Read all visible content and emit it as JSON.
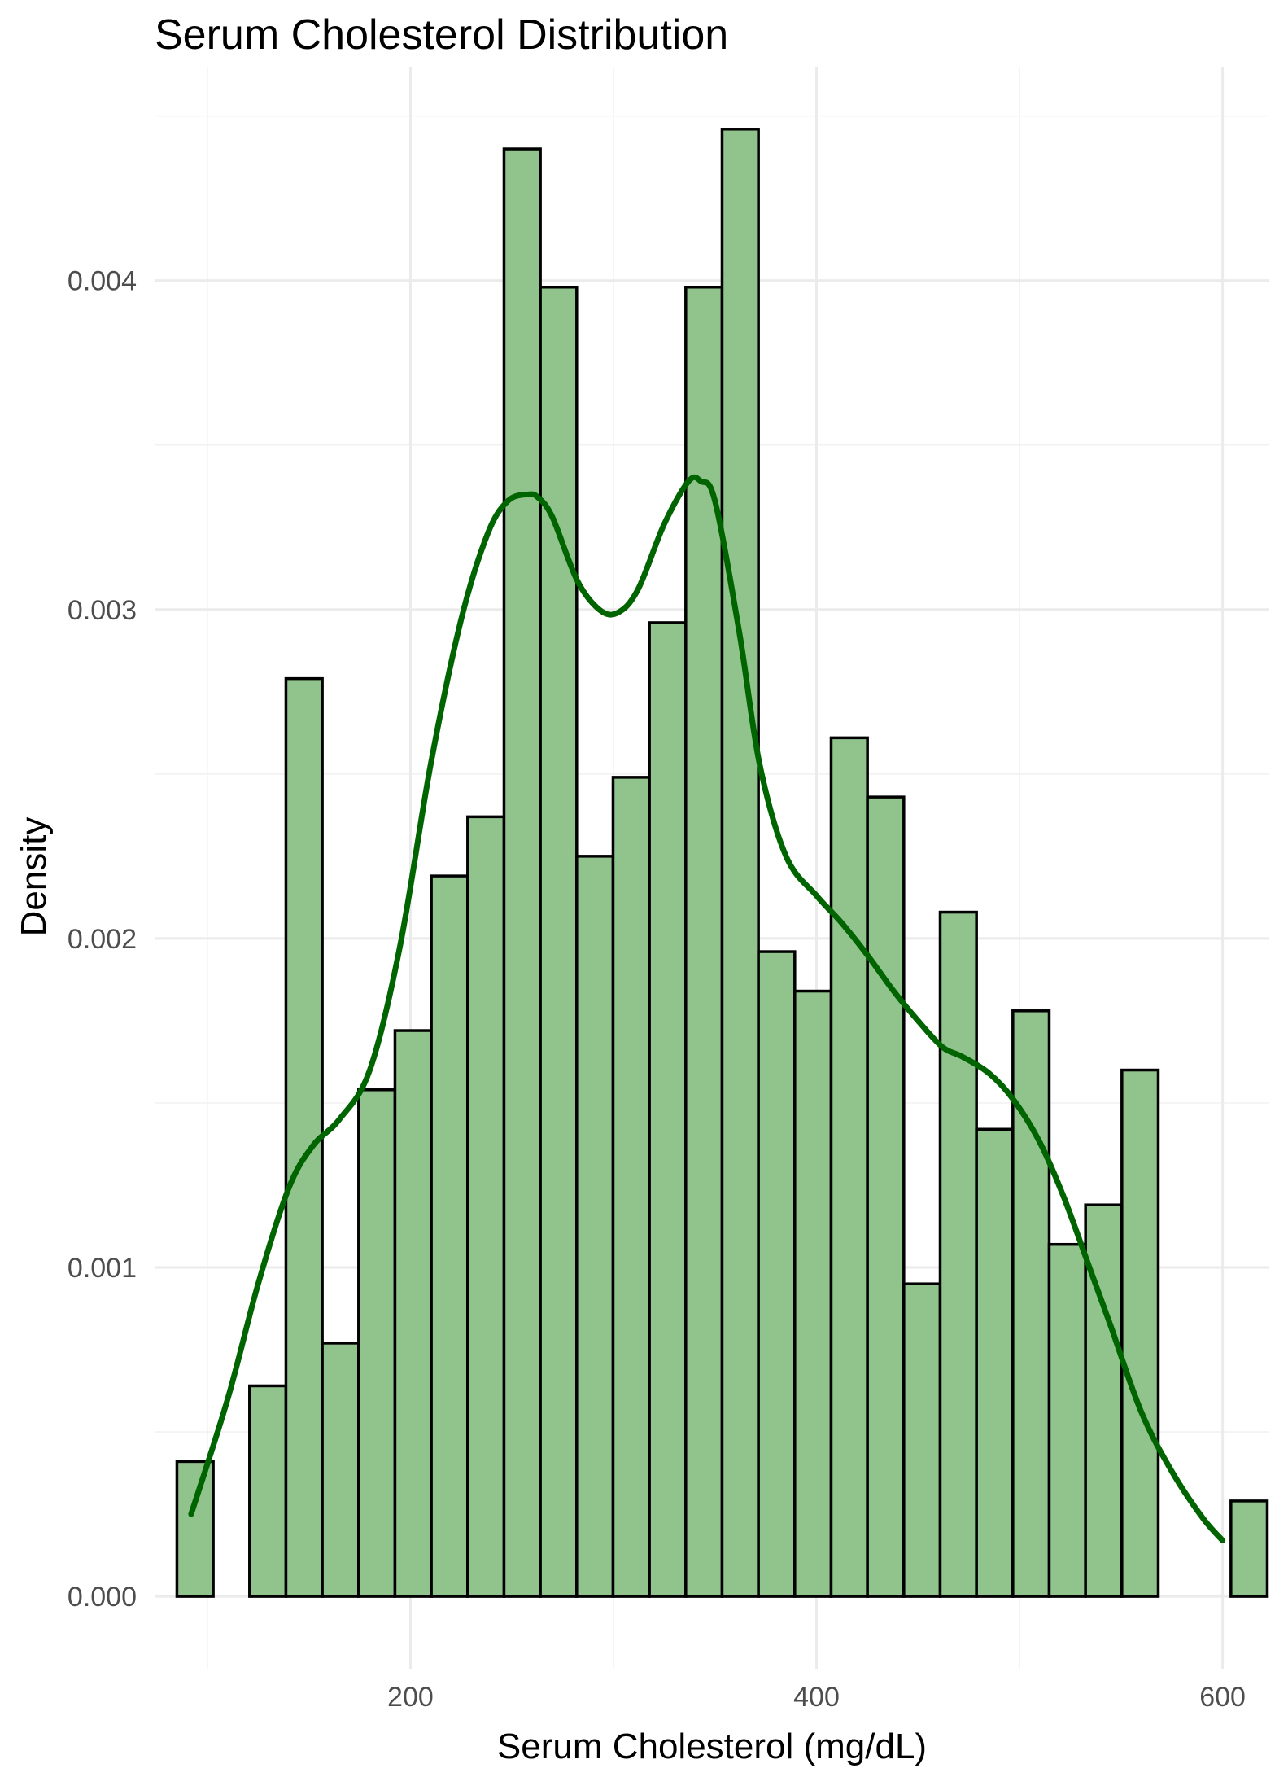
{
  "chart_data": {
    "type": "histogram",
    "title": "Serum Cholesterol Distribution",
    "xlabel": "Serum Cholesterol (mg/dL)",
    "ylabel": "Density",
    "xlim": [
      74,
      623
    ],
    "ylim": [
      -0.00022,
      0.00465
    ],
    "x_ticks": [
      200,
      400,
      600
    ],
    "x_tick_labels": [
      "200",
      "400",
      "600"
    ],
    "y_ticks": [
      0.0,
      0.001,
      0.002,
      0.003,
      0.004
    ],
    "y_tick_labels": [
      "0.000",
      "0.001",
      "0.002",
      "0.003",
      "0.004"
    ],
    "grid": true,
    "bin_width": 17.9,
    "bin_start": 85,
    "bar_fill": "#91c48d",
    "bar_outline": "#000000",
    "density_color": "#006400",
    "bins": [
      {
        "x0": 85.0,
        "x1": 102.9,
        "density": 0.00041
      },
      {
        "x0": 102.9,
        "x1": 120.8,
        "density": 0.0
      },
      {
        "x0": 120.8,
        "x1": 138.7,
        "density": 0.00064
      },
      {
        "x0": 138.7,
        "x1": 156.6,
        "density": 0.00279
      },
      {
        "x0": 156.6,
        "x1": 174.5,
        "density": 0.00077
      },
      {
        "x0": 174.5,
        "x1": 192.4,
        "density": 0.00154
      },
      {
        "x0": 192.4,
        "x1": 210.3,
        "density": 0.00172
      },
      {
        "x0": 210.3,
        "x1": 228.2,
        "density": 0.00219
      },
      {
        "x0": 228.2,
        "x1": 246.1,
        "density": 0.00237
      },
      {
        "x0": 246.1,
        "x1": 264.0,
        "density": 0.0044
      },
      {
        "x0": 264.0,
        "x1": 281.9,
        "density": 0.00398
      },
      {
        "x0": 281.9,
        "x1": 299.8,
        "density": 0.00225
      },
      {
        "x0": 299.8,
        "x1": 317.7,
        "density": 0.00249
      },
      {
        "x0": 317.7,
        "x1": 335.6,
        "density": 0.00296
      },
      {
        "x0": 335.6,
        "x1": 353.5,
        "density": 0.00398
      },
      {
        "x0": 353.5,
        "x1": 371.4,
        "density": 0.00446
      },
      {
        "x0": 371.4,
        "x1": 389.3,
        "density": 0.00196
      },
      {
        "x0": 389.3,
        "x1": 407.2,
        "density": 0.00184
      },
      {
        "x0": 407.2,
        "x1": 425.1,
        "density": 0.00261
      },
      {
        "x0": 425.1,
        "x1": 443.0,
        "density": 0.00243
      },
      {
        "x0": 443.0,
        "x1": 460.9,
        "density": 0.00095
      },
      {
        "x0": 460.9,
        "x1": 478.8,
        "density": 0.00208
      },
      {
        "x0": 478.8,
        "x1": 496.7,
        "density": 0.00142
      },
      {
        "x0": 496.7,
        "x1": 514.6,
        "density": 0.00178
      },
      {
        "x0": 514.6,
        "x1": 532.5,
        "density": 0.00107
      },
      {
        "x0": 532.5,
        "x1": 550.4,
        "density": 0.00119
      },
      {
        "x0": 550.4,
        "x1": 568.3,
        "density": 0.0016
      },
      {
        "x0": 568.3,
        "x1": 586.2,
        "density": 0.0
      },
      {
        "x0": 586.2,
        "x1": 604.1,
        "density": 0.0
      },
      {
        "x0": 604.1,
        "x1": 622.0,
        "density": 0.00029
      }
    ],
    "density_curve": {
      "x": [
        92,
        110,
        125,
        140,
        152,
        165,
        180,
        195,
        210,
        225,
        238,
        248,
        258,
        263,
        270,
        282,
        293,
        302,
        312,
        325,
        337,
        343,
        350,
        362,
        372,
        385,
        400,
        412,
        425,
        438,
        450,
        462,
        472,
        485,
        497,
        510,
        522,
        535,
        545,
        560,
        575,
        590,
        600
      ],
      "y": [
        0.00025,
        0.0006,
        0.00095,
        0.00124,
        0.00137,
        0.00145,
        0.0016,
        0.00198,
        0.00253,
        0.00297,
        0.00323,
        0.00333,
        0.00335,
        0.00334,
        0.00328,
        0.00309,
        0.003,
        0.00299,
        0.00306,
        0.00326,
        0.00339,
        0.00339,
        0.00333,
        0.00293,
        0.00253,
        0.00225,
        0.00213,
        0.00205,
        0.00195,
        0.00184,
        0.00175,
        0.00167,
        0.00164,
        0.00159,
        0.00151,
        0.00138,
        0.00121,
        0.00099,
        0.00082,
        0.00056,
        0.00038,
        0.00024,
        0.00017
      ]
    }
  }
}
